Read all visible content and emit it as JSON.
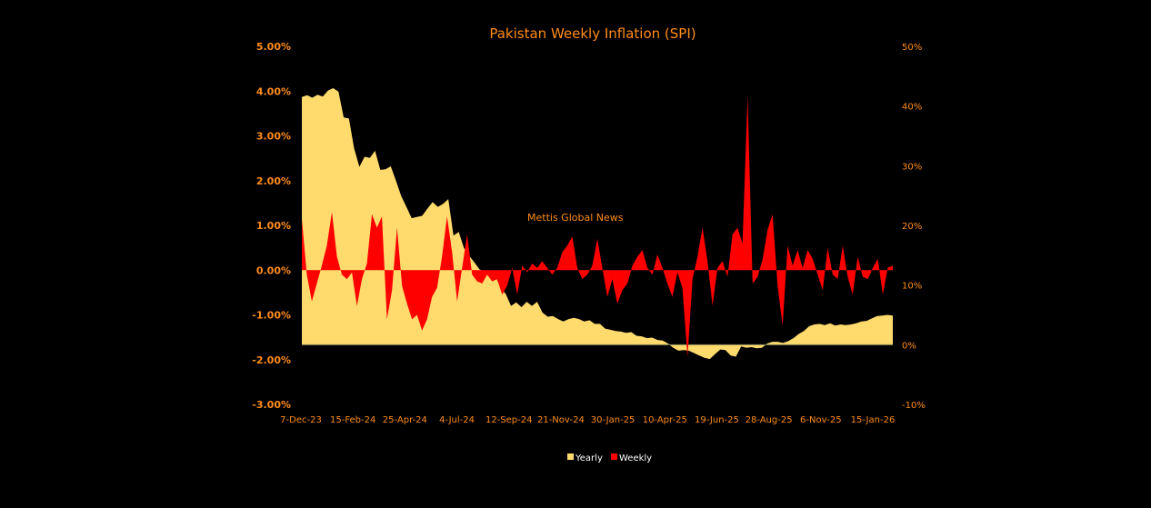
{
  "chart_data": {
    "type": "area",
    "title": "Pakistan Weekly Inflation (SPI)",
    "watermark": "Mettis Global News",
    "left_axis": {
      "ticks": [
        "5.00%",
        "4.00%",
        "3.00%",
        "2.00%",
        "1.00%",
        "0.00%",
        "-1.00%",
        "-2.00%",
        "-3.00%"
      ],
      "ylim": [
        -3,
        5
      ]
    },
    "right_axis": {
      "ticks": [
        "50%",
        "40%",
        "30%",
        "20%",
        "10%",
        "0%",
        "-10%"
      ],
      "ylim": [
        -10,
        50
      ]
    },
    "x_ticks": [
      "7-Dec-23",
      "15-Feb-24",
      "25-Apr-24",
      "4-Jul-24",
      "12-Sep-24",
      "21-Nov-24",
      "30-Jan-25",
      "10-Apr-25",
      "19-Jun-25",
      "28-Aug-25",
      "6-Nov-25",
      "15-Jan-26"
    ],
    "legend": {
      "position": "bottom"
    },
    "series": [
      {
        "name": "Yearly",
        "axis": "right",
        "color": "#ffdb6e",
        "values": [
          41.5,
          41.8,
          41.4,
          41.9,
          41.6,
          42.6,
          43.0,
          42.4,
          38.1,
          37.9,
          32.9,
          29.8,
          31.5,
          31.3,
          32.5,
          29.3,
          29.4,
          29.9,
          27.5,
          24.9,
          23.1,
          21.2,
          21.4,
          21.6,
          22.8,
          23.9,
          23.1,
          23.6,
          24.4,
          18.3,
          18.9,
          16.2,
          14.9,
          13.8,
          12.6,
          12.3,
          12.3,
          11.6,
          9.5,
          8.5,
          6.5,
          7.1,
          6.3,
          7.2,
          6.5,
          7.2,
          5.4,
          4.7,
          4.8,
          4.3,
          3.9,
          4.3,
          4.5,
          4.3,
          3.9,
          4.1,
          3.5,
          3.5,
          2.7,
          2.5,
          2.3,
          2.2,
          2.0,
          2.1,
          1.5,
          1.4,
          1.1,
          1.2,
          0.8,
          0.7,
          0.2,
          -0.5,
          -1.0,
          -0.9,
          -1.0,
          -1.4,
          -1.8,
          -2.2,
          -2.4,
          -1.6,
          -0.8,
          -0.9,
          -1.8,
          -2.0,
          -0.3,
          -0.5,
          -0.4,
          -0.6,
          -0.5,
          0.2,
          0.5,
          0.5,
          0.3,
          0.6,
          1.1,
          1.8,
          2.3,
          3.1,
          3.4,
          3.5,
          3.3,
          3.6,
          3.2,
          3.4,
          3.3,
          3.4,
          3.6,
          3.9,
          4.0,
          4.4,
          4.8,
          4.9,
          5.0,
          4.9
        ],
        "x_range": [
          0,
          146
        ]
      },
      {
        "name": "Weekly",
        "axis": "left",
        "color": "#ff0000",
        "values": [
          1.15,
          -0.1,
          -0.7,
          -0.3,
          0.1,
          0.55,
          1.3,
          0.3,
          -0.1,
          -0.2,
          -0.05,
          -0.8,
          -0.2,
          0.15,
          1.25,
          0.95,
          1.2,
          -1.1,
          -0.45,
          0.95,
          -0.35,
          -0.75,
          -1.1,
          -1.0,
          -1.35,
          -1.1,
          -0.6,
          -0.4,
          0.3,
          1.2,
          0.4,
          -0.7,
          0.05,
          0.8,
          -0.1,
          -0.25,
          -0.3,
          -0.1,
          -0.25,
          -0.2,
          -0.55,
          -0.35,
          0.05,
          -0.55,
          0.1,
          -0.05,
          0.15,
          0.05,
          0.2,
          0.05,
          -0.1,
          0.05,
          0.4,
          0.55,
          0.75,
          0.05,
          -0.2,
          -0.1,
          0.1,
          0.7,
          0.05,
          -0.6,
          -0.2,
          -0.75,
          -0.45,
          -0.3,
          0.1,
          0.3,
          0.45,
          0.05,
          -0.1,
          0.35,
          0.05,
          -0.3,
          -0.6,
          -0.05,
          -0.4,
          -1.95,
          -0.2,
          0.3,
          0.95,
          0.2,
          -0.8,
          0.05,
          0.2,
          -0.15,
          0.8,
          0.95,
          0.6,
          3.9,
          -0.3,
          -0.15,
          0.25,
          0.9,
          1.25,
          -0.35,
          -1.25,
          0.55,
          0.1,
          0.45,
          0.05,
          0.45,
          0.25,
          -0.1,
          -0.45,
          0.5,
          -0.1,
          -0.2,
          0.55,
          -0.15,
          -0.55,
          0.3,
          -0.15,
          -0.2,
          0.05,
          0.25,
          -0.55,
          0.05,
          0.1
        ],
        "x_range": [
          0,
          146
        ]
      }
    ]
  }
}
